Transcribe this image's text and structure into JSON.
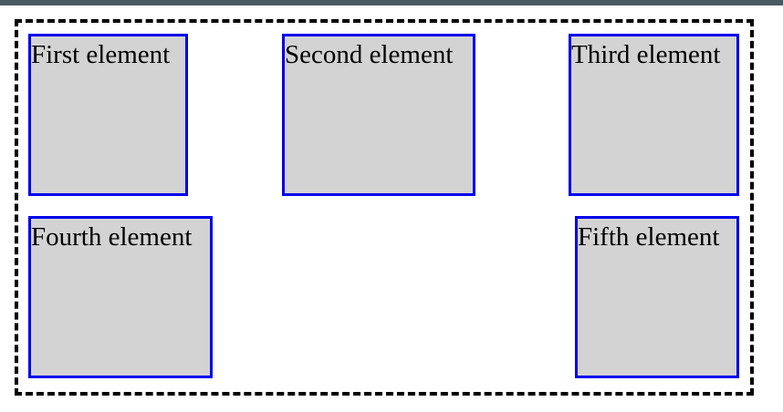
{
  "colors": {
    "top_bar": "#4a5a63",
    "container_border": "#000000",
    "box_background": "#d3d3d3",
    "box_border": "#0000ee"
  },
  "elements": [
    {
      "label": "First element"
    },
    {
      "label": "Second element"
    },
    {
      "label": "Third element"
    },
    {
      "label": "Fourth element"
    },
    {
      "label": "Fifth element"
    }
  ]
}
